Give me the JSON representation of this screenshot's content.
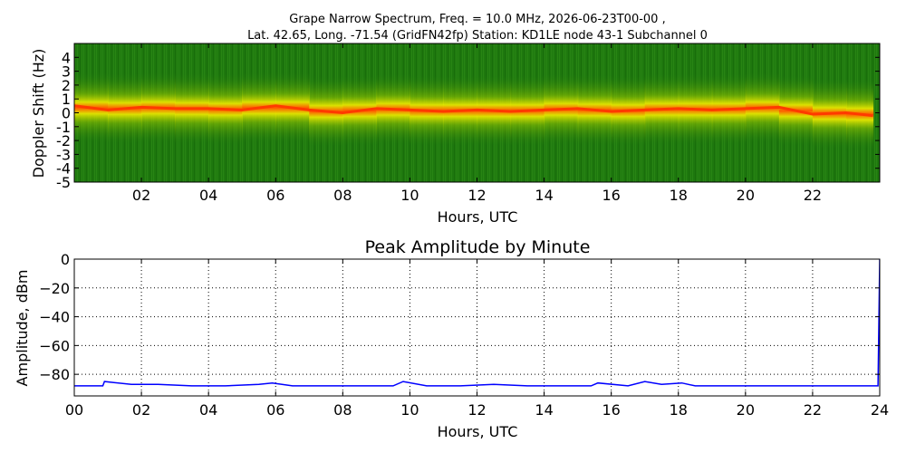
{
  "header": {
    "title_line1": "Grape Narrow Spectrum, Freq. = 10.0 MHz, 2026-06-23T00-00 ,",
    "title_line2": "Lat.  42.65, Long. -71.54 (GridFN42fp) Station: KD1LE node 43-1 Subchannel 0"
  },
  "chart_data": [
    {
      "type": "heatmap",
      "xlabel": "Hours, UTC",
      "ylabel": "Doppler Shift (Hz)",
      "xlim": [
        0,
        24
      ],
      "ylim": [
        -5,
        5
      ],
      "x_ticks": [
        "02",
        "04",
        "06",
        "08",
        "10",
        "12",
        "14",
        "16",
        "18",
        "20",
        "22"
      ],
      "x_tick_values": [
        2,
        4,
        6,
        8,
        10,
        12,
        14,
        16,
        18,
        20,
        22
      ],
      "y_ticks": [
        "4",
        "3",
        "2",
        "1",
        "0",
        "-1",
        "-2",
        "-3",
        "-4",
        "-5"
      ],
      "y_tick_values": [
        4,
        3,
        2,
        1,
        0,
        -1,
        -2,
        -3,
        -4,
        -5
      ],
      "grid": false,
      "colors": {
        "background": "#1f7a0f",
        "mid": "#d8d800",
        "peak": "#ff4a00"
      },
      "doppler_trace": {
        "x": [
          0,
          1,
          2,
          3,
          4,
          5,
          6,
          7,
          8,
          9,
          10,
          11,
          12,
          13,
          14,
          15,
          16,
          17,
          18,
          19,
          20,
          21,
          22,
          23,
          23.8
        ],
        "y": [
          0.5,
          0.2,
          0.4,
          0.3,
          0.3,
          0.2,
          0.5,
          0.2,
          0.0,
          0.3,
          0.2,
          0.1,
          0.2,
          0.1,
          0.2,
          0.3,
          0.1,
          0.2,
          0.3,
          0.2,
          0.3,
          0.4,
          -0.1,
          0.0,
          -0.2
        ]
      }
    },
    {
      "type": "line",
      "title": "Peak Amplitude by Minute",
      "xlabel": "Hours, UTC",
      "ylabel": "Amplitude, dBm",
      "xlim": [
        0,
        24
      ],
      "ylim": [
        -95,
        0
      ],
      "x_ticks": [
        "00",
        "02",
        "04",
        "06",
        "08",
        "10",
        "12",
        "14",
        "16",
        "18",
        "20",
        "22",
        "24"
      ],
      "x_tick_values": [
        0,
        2,
        4,
        6,
        8,
        10,
        12,
        14,
        16,
        18,
        20,
        22,
        24
      ],
      "y_ticks": [
        "0",
        "−20",
        "−40",
        "−60",
        "−80"
      ],
      "y_tick_values": [
        0,
        -20,
        -40,
        -60,
        -80
      ],
      "grid": true,
      "series": [
        {
          "color": "#0000ff",
          "x": [
            0,
            0.85,
            0.9,
            1.7,
            2.5,
            3.5,
            4.5,
            5.5,
            5.9,
            6.5,
            7.5,
            8.5,
            9.5,
            9.8,
            10.5,
            11.5,
            12.5,
            13.5,
            14.5,
            15.4,
            15.6,
            16.5,
            17.0,
            17.5,
            18.1,
            18.5,
            19.5,
            20.5,
            21.5,
            22.5,
            23.5,
            23.95,
            24.0
          ],
          "y": [
            -88,
            -88,
            -85,
            -87,
            -87,
            -88,
            -88,
            -87,
            -86,
            -88,
            -88,
            -88,
            -88,
            -85,
            -88,
            -88,
            -87,
            -88,
            -88,
            -88,
            -86,
            -88,
            -85,
            -87,
            -86,
            -88,
            -88,
            -88,
            -88,
            -88,
            -88,
            -88,
            0
          ]
        }
      ]
    }
  ]
}
